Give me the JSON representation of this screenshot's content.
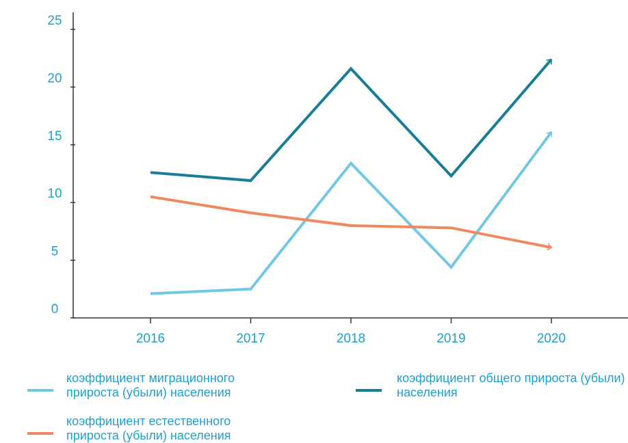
{
  "chart_data": {
    "type": "line",
    "categories": [
      "2016",
      "2017",
      "2018",
      "2019",
      "2020"
    ],
    "series": [
      {
        "name": "коэффициент миграционного прироста (убыли) населения",
        "color": "#72c7e3",
        "values": [
          2.1,
          2.5,
          13.4,
          4.4,
          16.1
        ]
      },
      {
        "name": "коэффициент общего прироста (убыли) населения",
        "color": "#177e95",
        "values": [
          12.6,
          11.9,
          21.6,
          12.3,
          22.4
        ]
      },
      {
        "name": "коэффициент естественного прироста (убыли) населения",
        "color": "#ef8a60",
        "values": [
          10.5,
          9.1,
          8.0,
          7.8,
          6.1
        ]
      }
    ],
    "ylim": [
      0,
      25
    ],
    "yticks": [
      0,
      5,
      10,
      15,
      20,
      25
    ]
  }
}
